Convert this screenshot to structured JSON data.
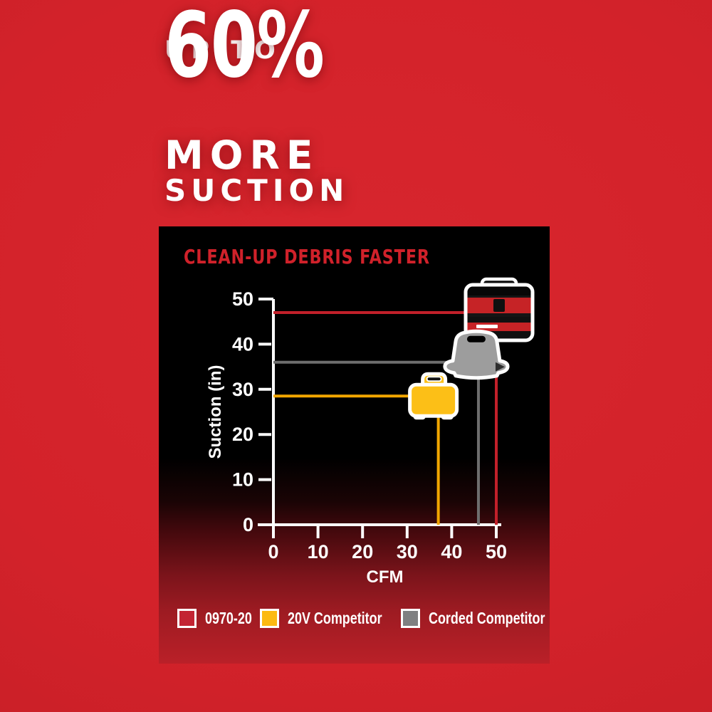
{
  "headline": {
    "line1": "UP TO",
    "line2": "60%",
    "line3": "MORE",
    "line4": "SUCTION"
  },
  "panel": {
    "title": "CLEAN-UP DEBRIS FASTER"
  },
  "chart_data": {
    "type": "line",
    "title": "CLEAN-UP DEBRIS FASTER",
    "xlabel": "CFM",
    "ylabel": "Suction (in)",
    "xlim": [
      0,
      50
    ],
    "ylim": [
      0,
      50
    ],
    "xticks": [
      0,
      10,
      20,
      30,
      40,
      50
    ],
    "yticks": [
      0,
      10,
      20,
      30,
      40,
      50
    ],
    "grid": false,
    "legend_position": "bottom",
    "series": [
      {
        "name": "0970-20",
        "cfm": 50,
        "suction_in": 47,
        "color": "#c2202a",
        "icon": "milwaukee-cordless-vacuum-icon"
      },
      {
        "name": "Corded Competitor",
        "cfm": 46,
        "suction_in": 36,
        "color": "#6e6e6e",
        "icon": "corded-competitor-vacuum-icon"
      },
      {
        "name": "20V Competitor",
        "cfm": 37,
        "suction_in": 28.5,
        "color": "#f2a600",
        "icon": "20v-competitor-vacuum-icon"
      }
    ]
  },
  "legend": {
    "items": [
      {
        "label": "0970-20",
        "color": "#c32433"
      },
      {
        "label": "20V Competitor",
        "color": "#fcba12"
      },
      {
        "label": "Corded Competitor",
        "color": "#7f8081"
      }
    ]
  },
  "colors": {
    "background": "#d5232b",
    "panel_black": "#000000",
    "title_red": "#d0212a",
    "axis_white": "#ffffff",
    "icon_yellow": "#fcbf17",
    "icon_gray": "#9d9d9d",
    "icon_red": "#c62326"
  }
}
